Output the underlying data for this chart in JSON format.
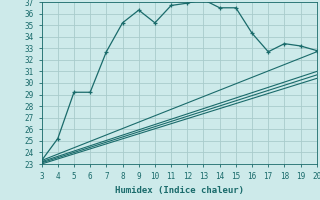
{
  "xlabel": "Humidex (Indice chaleur)",
  "bg_color": "#cdeaea",
  "grid_color": "#a8cccc",
  "line_color": "#1a6b6b",
  "xlim": [
    3,
    20
  ],
  "ylim": [
    23,
    37
  ],
  "xticks": [
    3,
    4,
    5,
    6,
    7,
    8,
    9,
    10,
    11,
    12,
    13,
    14,
    15,
    16,
    17,
    18,
    19,
    20
  ],
  "yticks": [
    23,
    24,
    25,
    26,
    27,
    28,
    29,
    30,
    31,
    32,
    33,
    34,
    35,
    36,
    37
  ],
  "main_line_x": [
    3,
    4,
    5,
    6,
    7,
    8,
    9,
    10,
    11,
    12,
    13,
    14,
    15,
    16,
    17,
    18,
    19,
    20
  ],
  "main_line_y": [
    23.3,
    25.2,
    29.2,
    29.2,
    32.7,
    35.2,
    36.3,
    35.2,
    36.7,
    36.9,
    37.2,
    36.5,
    36.5,
    34.3,
    32.7,
    33.4,
    33.2,
    32.8
  ],
  "line1_x": [
    3,
    20
  ],
  "line1_y": [
    23.3,
    32.7
  ],
  "line2_x": [
    3,
    20
  ],
  "line2_y": [
    23.2,
    31.0
  ],
  "line3_x": [
    3,
    20
  ],
  "line3_y": [
    23.1,
    30.7
  ],
  "line4_x": [
    3,
    20
  ],
  "line4_y": [
    23.0,
    30.4
  ]
}
